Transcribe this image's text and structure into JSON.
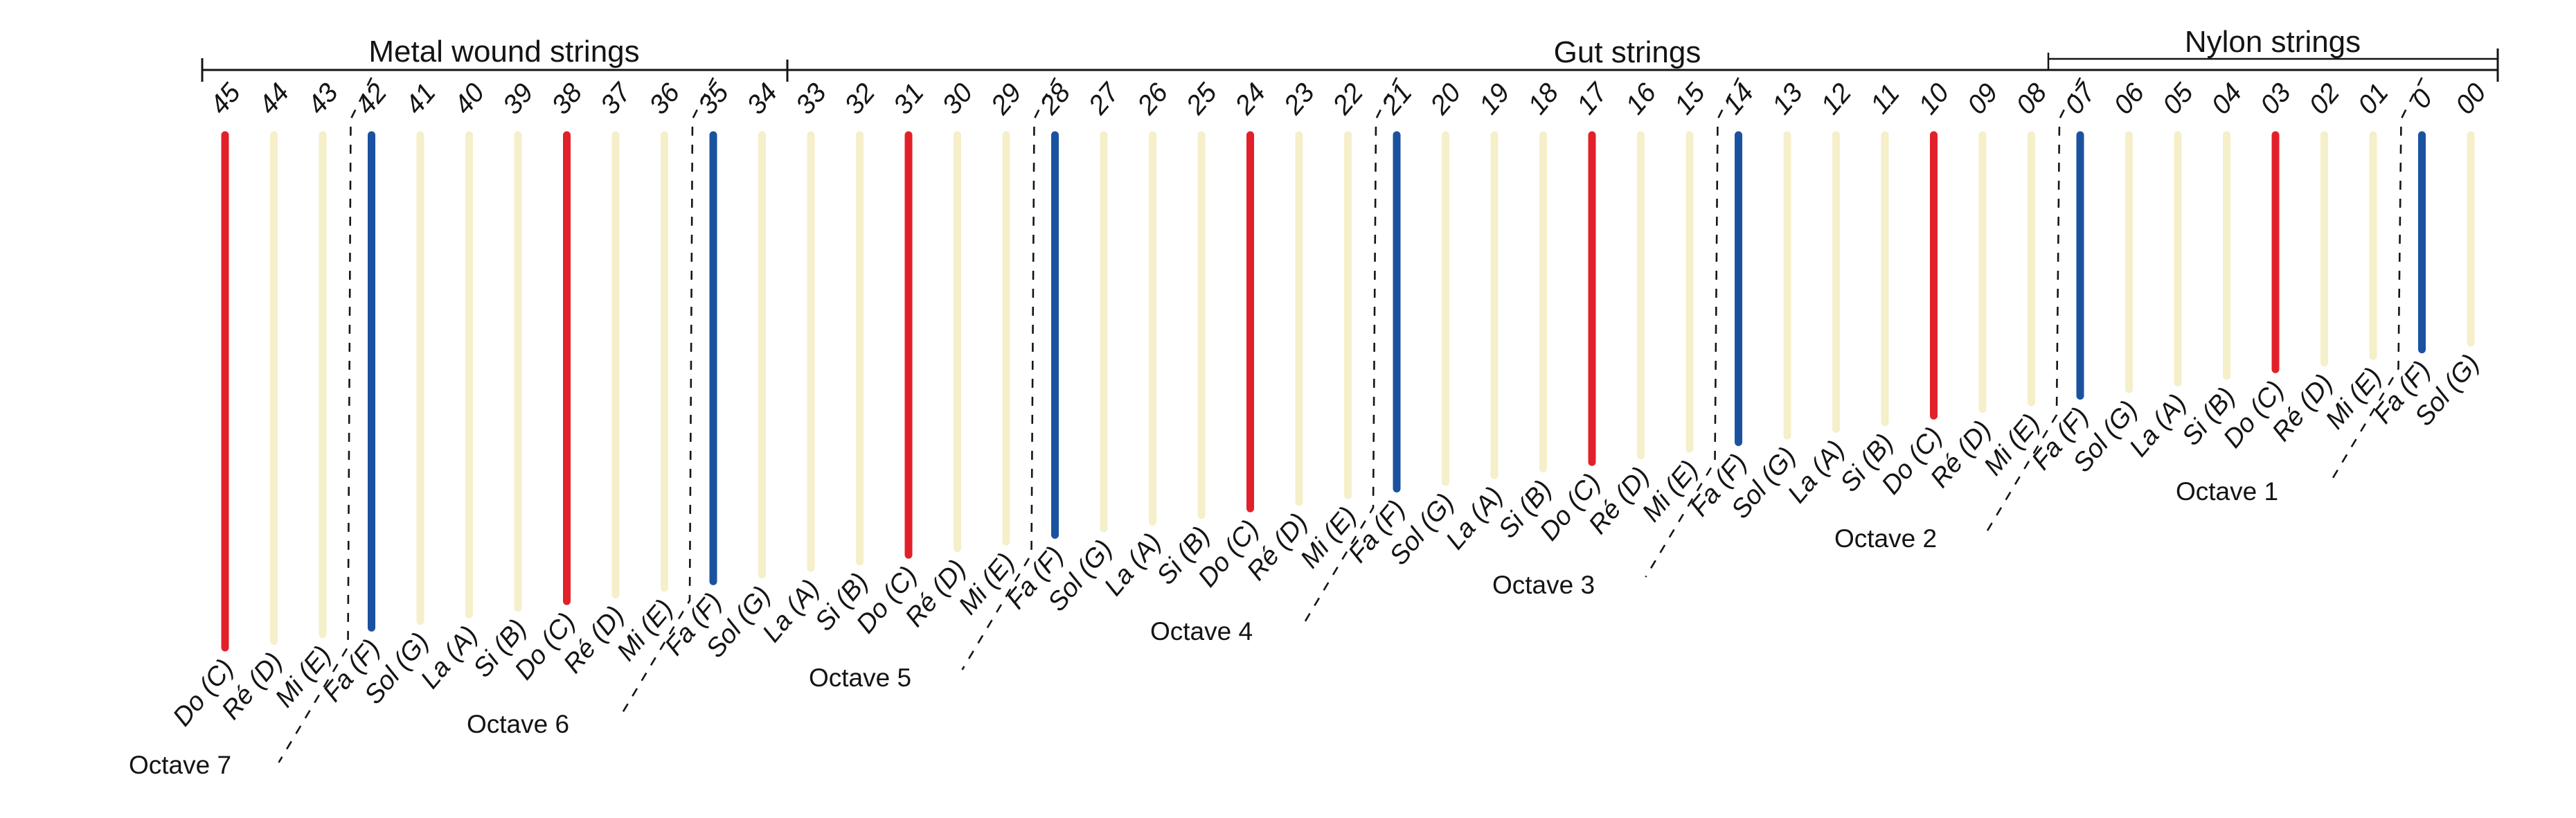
{
  "diagram": {
    "string_types": [
      {
        "label": "Metal wound strings",
        "covers_strings": "45-34"
      },
      {
        "label": "Gut strings",
        "covers_strings": "33-08"
      },
      {
        "label": "Nylon strings",
        "covers_strings": "07-00"
      }
    ],
    "octave_labels": [
      "Octave 7",
      "Octave 6",
      "Octave 5",
      "Octave 4",
      "Octave 3",
      "Octave 2",
      "Octave 1"
    ],
    "colors": {
      "do_c": "#e2202a",
      "fa_f": "#1b52a0",
      "plain": "#f5efca",
      "ink": "#141414"
    },
    "strings": [
      {
        "number": "45",
        "note": "Do (C)",
        "color": "do_c",
        "octave": "Octave 7"
      },
      {
        "number": "44",
        "note": "Ré (D)",
        "color": "plain",
        "octave": "Octave 7"
      },
      {
        "number": "43",
        "note": "Mi (E)",
        "color": "plain",
        "octave": "Octave 7"
      },
      {
        "number": "42",
        "note": "Fa (F)",
        "color": "fa_f",
        "octave": "Octave 6"
      },
      {
        "number": "41",
        "note": "Sol (G)",
        "color": "plain",
        "octave": "Octave 6"
      },
      {
        "number": "40",
        "note": "La (A)",
        "color": "plain",
        "octave": "Octave 6"
      },
      {
        "number": "39",
        "note": "Si (B)",
        "color": "plain",
        "octave": "Octave 6"
      },
      {
        "number": "38",
        "note": "Do (C)",
        "color": "do_c",
        "octave": "Octave 6"
      },
      {
        "number": "37",
        "note": "Ré (D)",
        "color": "plain",
        "octave": "Octave 6"
      },
      {
        "number": "36",
        "note": "Mi (E)",
        "color": "plain",
        "octave": "Octave 6"
      },
      {
        "number": "35",
        "note": "Fa (F)",
        "color": "fa_f",
        "octave": "Octave 5"
      },
      {
        "number": "34",
        "note": "Sol (G)",
        "color": "plain",
        "octave": "Octave 5"
      },
      {
        "number": "33",
        "note": "La (A)",
        "color": "plain",
        "octave": "Octave 5"
      },
      {
        "number": "32",
        "note": "Si (B)",
        "color": "plain",
        "octave": "Octave 5"
      },
      {
        "number": "31",
        "note": "Do (C)",
        "color": "do_c",
        "octave": "Octave 5"
      },
      {
        "number": "30",
        "note": "Ré (D)",
        "color": "plain",
        "octave": "Octave 5"
      },
      {
        "number": "29",
        "note": "Mi (E)",
        "color": "plain",
        "octave": "Octave 5"
      },
      {
        "number": "28",
        "note": "Fa (F)",
        "color": "fa_f",
        "octave": "Octave 4"
      },
      {
        "number": "27",
        "note": "Sol (G)",
        "color": "plain",
        "octave": "Octave 4"
      },
      {
        "number": "26",
        "note": "La (A)",
        "color": "plain",
        "octave": "Octave 4"
      },
      {
        "number": "25",
        "note": "Si (B)",
        "color": "plain",
        "octave": "Octave 4"
      },
      {
        "number": "24",
        "note": "Do (C)",
        "color": "do_c",
        "octave": "Octave 4"
      },
      {
        "number": "23",
        "note": "Ré (D)",
        "color": "plain",
        "octave": "Octave 4"
      },
      {
        "number": "22",
        "note": "Mi (E)",
        "color": "plain",
        "octave": "Octave 4"
      },
      {
        "number": "21",
        "note": "Fa (F)",
        "color": "fa_f",
        "octave": "Octave 3"
      },
      {
        "number": "20",
        "note": "Sol (G)",
        "color": "plain",
        "octave": "Octave 3"
      },
      {
        "number": "19",
        "note": "La (A)",
        "color": "plain",
        "octave": "Octave 3"
      },
      {
        "number": "18",
        "note": "Si (B)",
        "color": "plain",
        "octave": "Octave 3"
      },
      {
        "number": "17",
        "note": "Do (C)",
        "color": "do_c",
        "octave": "Octave 3"
      },
      {
        "number": "16",
        "note": "Ré (D)",
        "color": "plain",
        "octave": "Octave 3"
      },
      {
        "number": "15",
        "note": "Mi (E)",
        "color": "plain",
        "octave": "Octave 3"
      },
      {
        "number": "14",
        "note": "Fa (F)",
        "color": "fa_f",
        "octave": "Octave 2"
      },
      {
        "number": "13",
        "note": "Sol (G)",
        "color": "plain",
        "octave": "Octave 2"
      },
      {
        "number": "12",
        "note": "La (A)",
        "color": "plain",
        "octave": "Octave 2"
      },
      {
        "number": "11",
        "note": "Si (B)",
        "color": "plain",
        "octave": "Octave 2"
      },
      {
        "number": "10",
        "note": "Do (C)",
        "color": "do_c",
        "octave": "Octave 2"
      },
      {
        "number": "09",
        "note": "Ré (D)",
        "color": "plain",
        "octave": "Octave 2"
      },
      {
        "number": "08",
        "note": "Mi (E)",
        "color": "plain",
        "octave": "Octave 2"
      },
      {
        "number": "07",
        "note": "Fa (F)",
        "color": "fa_f",
        "octave": "Octave 1"
      },
      {
        "number": "06",
        "note": "Sol (G)",
        "color": "plain",
        "octave": "Octave 1"
      },
      {
        "number": "05",
        "note": "La (A)",
        "color": "plain",
        "octave": "Octave 1"
      },
      {
        "number": "04",
        "note": "Si (B)",
        "color": "plain",
        "octave": "Octave 1"
      },
      {
        "number": "03",
        "note": "Do (C)",
        "color": "do_c",
        "octave": "Octave 1"
      },
      {
        "number": "02",
        "note": "Ré (D)",
        "color": "plain",
        "octave": "Octave 1"
      },
      {
        "number": "01",
        "note": "Mi (E)",
        "color": "plain",
        "octave": "Octave 1"
      },
      {
        "number": "0",
        "note": "Fa (F)",
        "color": "fa_f",
        "octave": ""
      },
      {
        "number": "00",
        "note": "Sol (G)",
        "color": "plain",
        "octave": ""
      }
    ]
  }
}
